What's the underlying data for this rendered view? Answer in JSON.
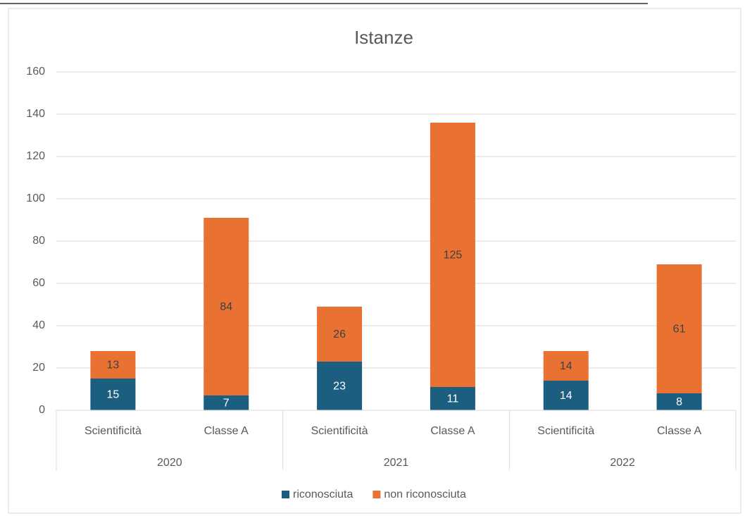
{
  "chart_data": {
    "type": "stacked_bar",
    "title": "Istanze",
    "categories": [
      "Scientificità",
      "Classe A",
      "Scientificità",
      "Classe A",
      "Scientificità",
      "Classe A"
    ],
    "groups": [
      "2020",
      "2021",
      "2022"
    ],
    "series": [
      {
        "name": "riconosciuta",
        "color": "#1b5e80",
        "values": [
          15,
          7,
          23,
          11,
          14,
          8
        ]
      },
      {
        "name": "non riconosciuta",
        "color": "#e97132",
        "values": [
          13,
          84,
          26,
          125,
          14,
          61
        ]
      }
    ],
    "ylim": [
      0,
      160
    ],
    "yticks": [
      0,
      20,
      40,
      60,
      80,
      100,
      120,
      140,
      160
    ],
    "grid": true,
    "legend": "bottom"
  }
}
